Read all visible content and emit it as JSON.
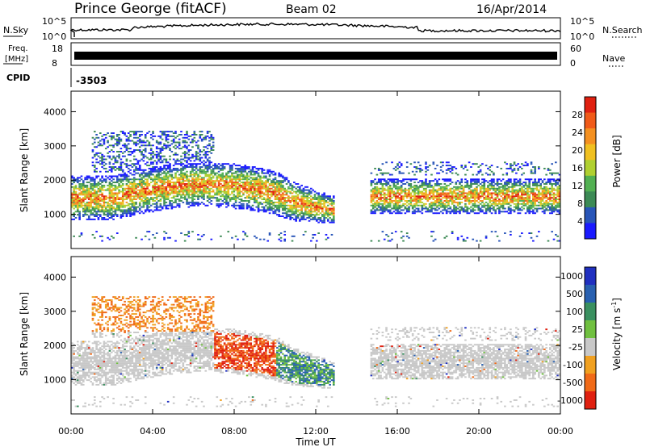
{
  "header": {
    "station": "Prince George (fitACF)",
    "beam": "Beam 02",
    "date": "16/Apr/2014"
  },
  "top_panel": {
    "left_label": "N.Sky",
    "left_ticks": [
      "10^5",
      "10^0"
    ],
    "right_label": "N.Search",
    "right_ticks": [
      "10^5",
      "10^0"
    ]
  },
  "freq_panel": {
    "left_label_1": "Freq.",
    "left_label_2": "[MHz]",
    "left_ticks": [
      "18",
      "8"
    ],
    "right_label": "Nave",
    "right_ticks": [
      "60",
      "0"
    ]
  },
  "cpid": {
    "label": "CPID",
    "value": "-3503"
  },
  "chart_data": [
    {
      "type": "heatmap",
      "name": "power",
      "ylabel": "Slant Range [km]",
      "ylim": [
        0,
        4600
      ],
      "yticks": [
        "1000",
        "2000",
        "3000",
        "4000"
      ],
      "xlim": [
        0,
        24
      ],
      "colorbar": {
        "label": "Power [dB]",
        "ticks": [
          "4",
          "8",
          "12",
          "16",
          "20",
          "24",
          "28"
        ],
        "colors": [
          "#1a1aff",
          "#2855b8",
          "#3c8a55",
          "#52b052",
          "#b0d030",
          "#f0c020",
          "#f49020",
          "#f05a18",
          "#e02010"
        ]
      }
    },
    {
      "type": "heatmap",
      "name": "velocity",
      "ylabel": "Slant Range [km]",
      "ylim": [
        0,
        4600
      ],
      "yticks": [
        "1000",
        "2000",
        "3000",
        "4000"
      ],
      "xlim": [
        0,
        24
      ],
      "xlabel": "Time UT",
      "xticks": [
        "00:00",
        "04:00",
        "08:00",
        "12:00",
        "16:00",
        "20:00",
        "00:00"
      ],
      "colorbar": {
        "label": "Velocity [m s",
        "label_sup": "-1",
        "label_end": "]",
        "ticks": [
          "1000",
          "500",
          "100",
          "25",
          "-25",
          "-100",
          "-500",
          "-1000"
        ],
        "colors": [
          "#2030c0",
          "#2860b0",
          "#3a9060",
          "#70c040",
          "#c8c8c8",
          "#f0a020",
          "#f06a18",
          "#e02010"
        ]
      }
    }
  ]
}
